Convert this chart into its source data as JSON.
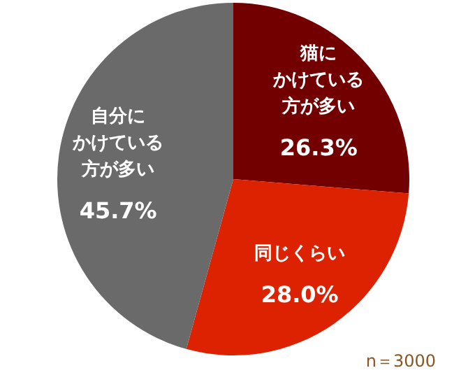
{
  "chart_data": {
    "type": "pie",
    "categories": [
      "猫にかけている方が多い",
      "同じくらい",
      "自分にかけている方が多い"
    ],
    "values": [
      26.3,
      28.0,
      45.7
    ],
    "colors": [
      "#720000",
      "#dc2200",
      "#6a6a6a"
    ],
    "value_labels": [
      "26.3%",
      "28.0%",
      "45.7%"
    ],
    "annotations": [
      "n＝3000"
    ]
  }
}
